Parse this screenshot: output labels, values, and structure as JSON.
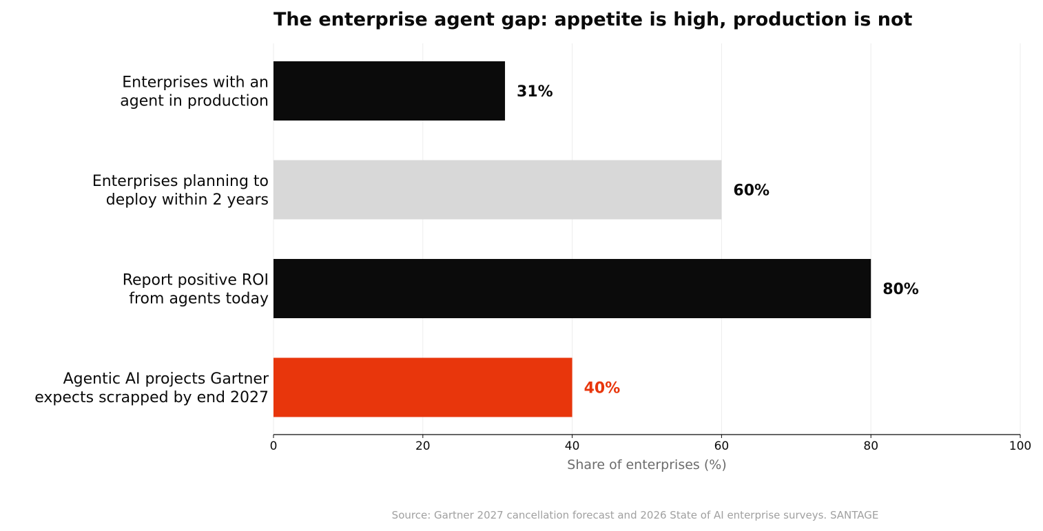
{
  "chart_data": {
    "type": "bar",
    "orientation": "horizontal",
    "title": "The enterprise agent gap: appetite is high, production is not",
    "xlabel": "Share of enterprises (%)",
    "ylabel": "",
    "xlim": [
      0,
      100
    ],
    "xticks": [
      "0",
      "20",
      "40",
      "60",
      "80",
      "100"
    ],
    "grid": true,
    "categories": [
      [
        "Enterprises with an",
        "agent in production"
      ],
      [
        "Enterprises planning to",
        "deploy within 2 years"
      ],
      [
        "Report positive ROI",
        "from agents today"
      ],
      [
        "Agentic AI projects Gartner",
        "expects scrapped by end 2027"
      ]
    ],
    "values": [
      31,
      60,
      80,
      40
    ],
    "value_labels": [
      "31%",
      "60%",
      "80%",
      "40%"
    ],
    "bar_colors": [
      "#0b0b0b",
      "#d8d8d8",
      "#0b0b0b",
      "#e8360c"
    ],
    "label_colors": [
      "#0b0b0b",
      "#0b0b0b",
      "#0b0b0b",
      "#e8360c"
    ]
  },
  "source": "Source: Gartner 2027 cancellation forecast and 2026 State of AI enterprise surveys.   SANTAGE"
}
